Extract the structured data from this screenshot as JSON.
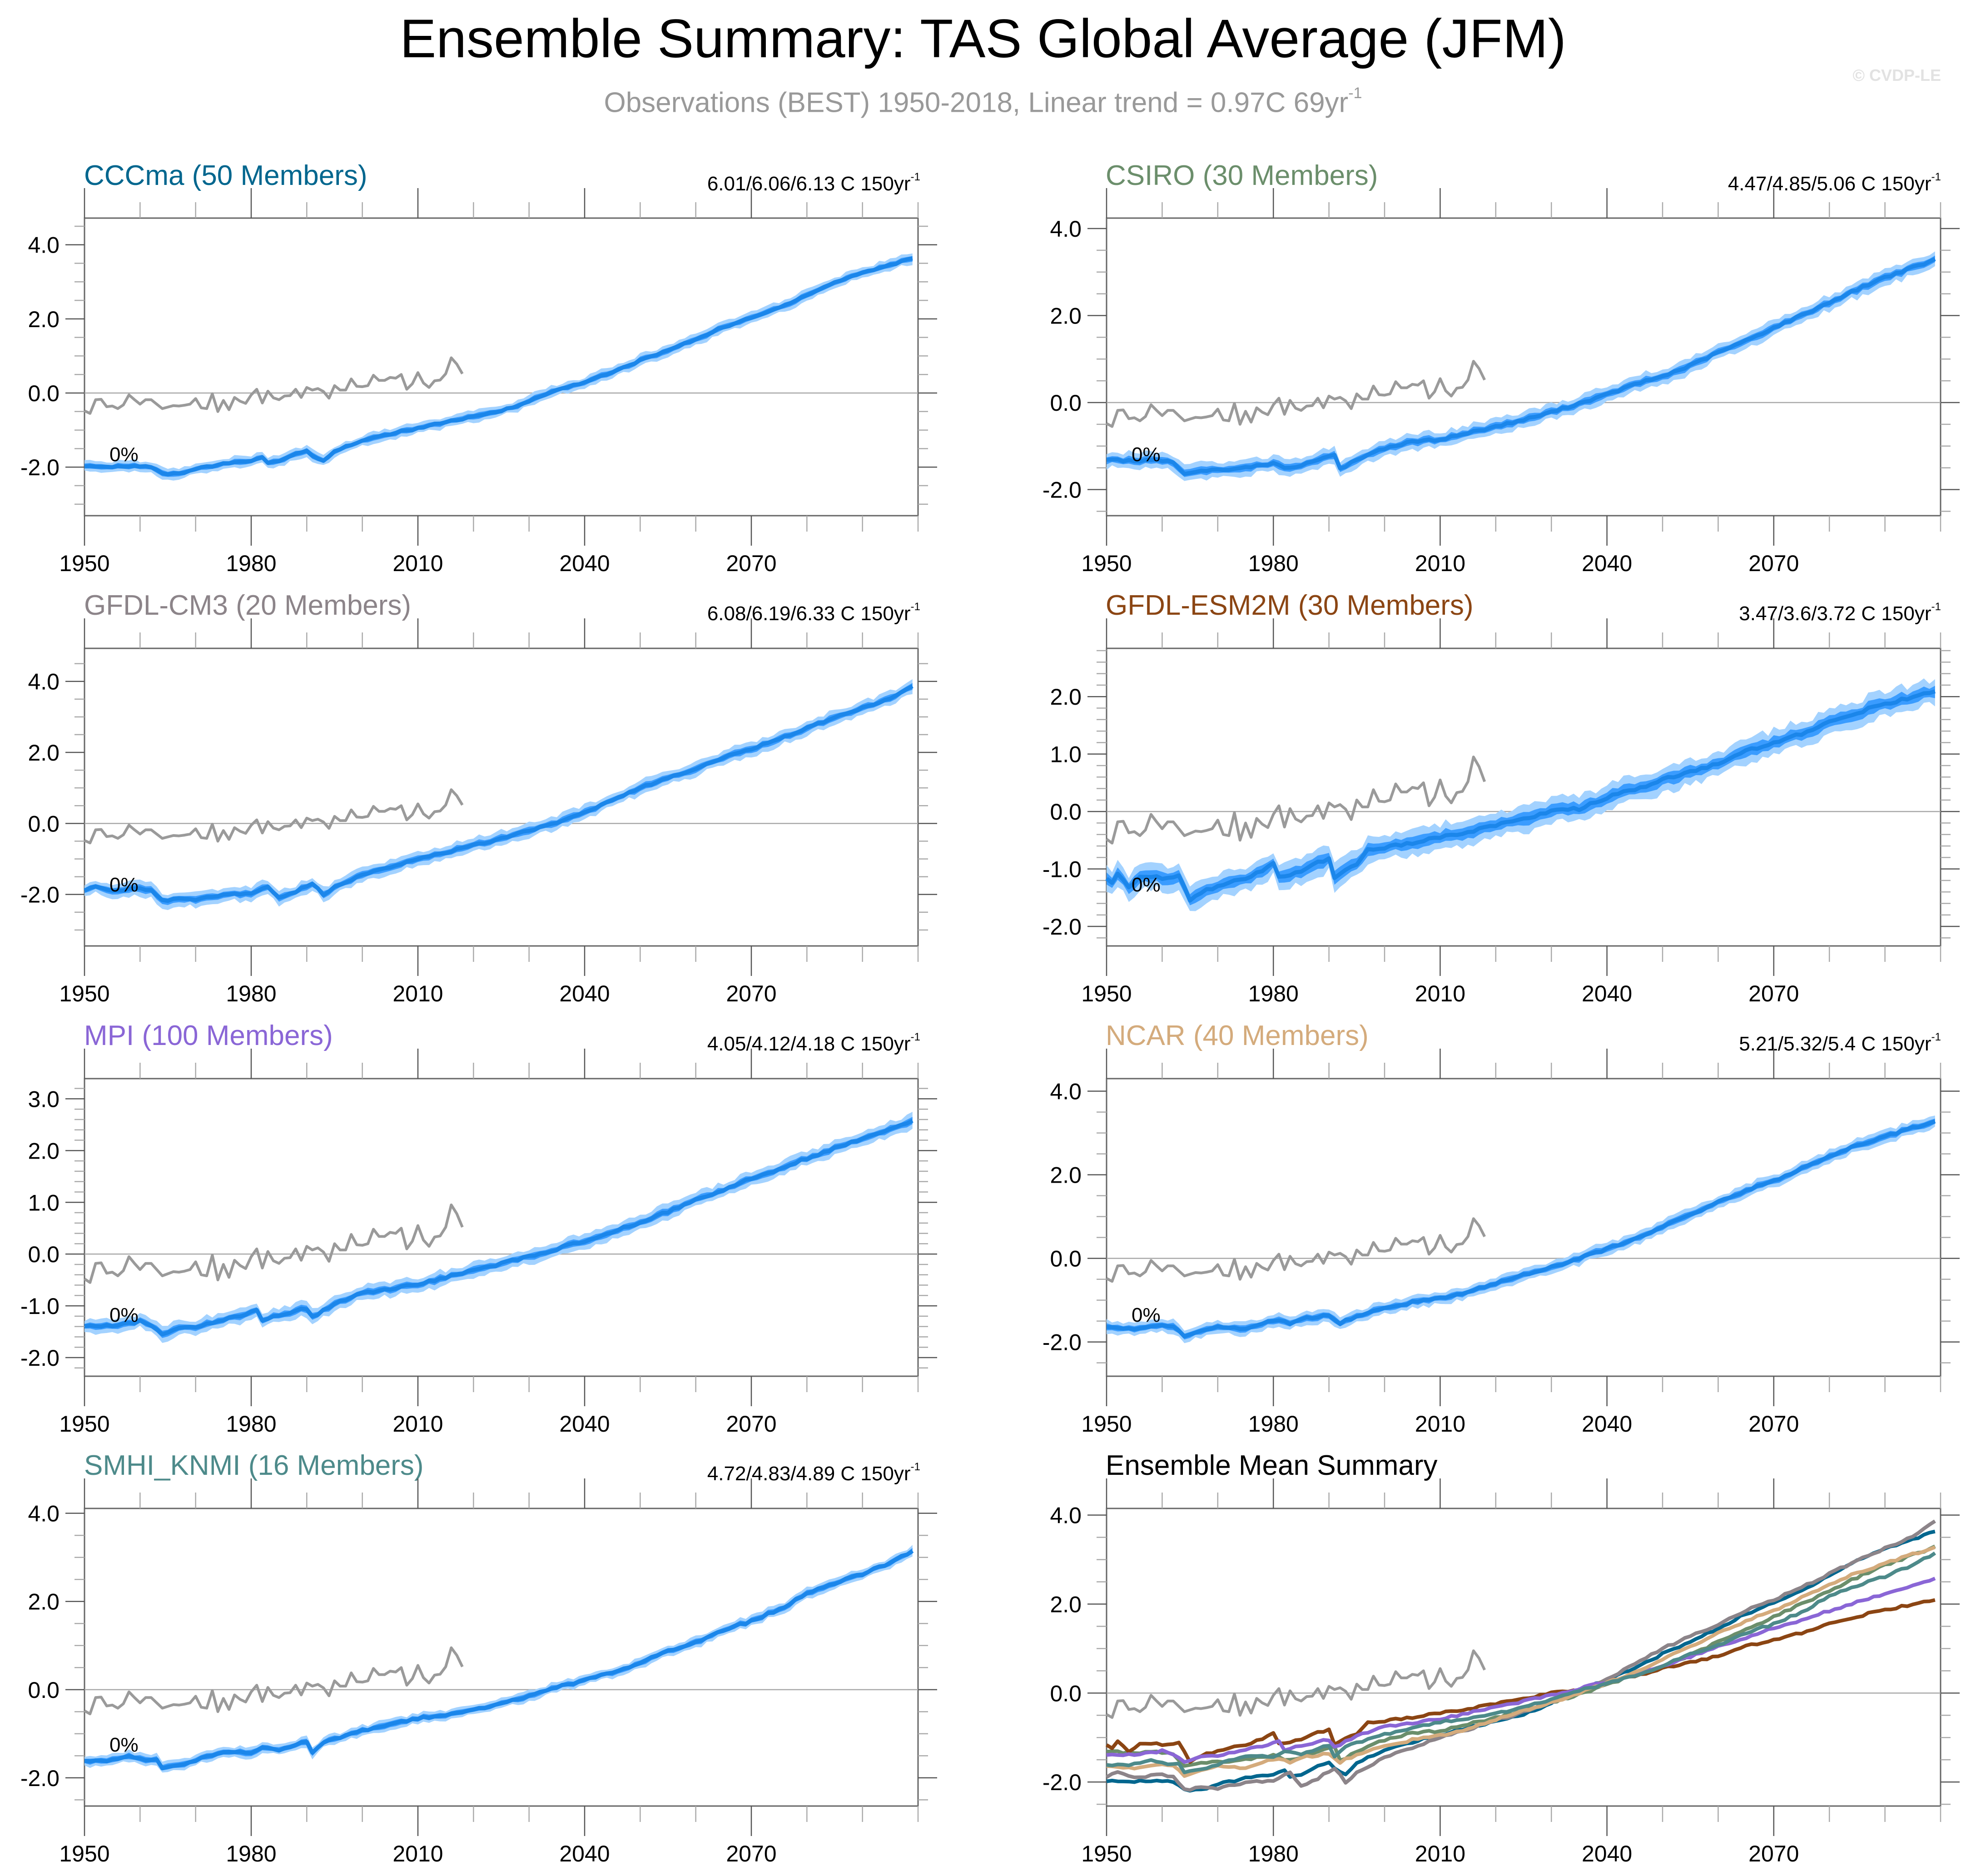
{
  "header": {
    "title": "Ensemble Summary: TAS Global Average (JFM)",
    "subtitle": "Observations (BEST) 1950-2018, Linear trend = 0.97C 69yr",
    "subtitle_sup": "-1",
    "copyright": "© CVDP-LE"
  },
  "colors": {
    "observations": "#9a9a9a",
    "envelope_outer": "#a3d2ff",
    "envelope_inner": "#3a9cff",
    "ensemble_mean": "#1b86ea",
    "zero_line": "#a8a8a8",
    "axis": "#666666"
  },
  "chart_data": [
    {
      "type": "line",
      "id": "cccma",
      "title": "CCCma (50 Members)",
      "title_color": "#00668e",
      "stats": "6.01/6.06/6.13 C 150yr",
      "stats_sup": "-1",
      "percent_label": "0%",
      "xlim": [
        1950,
        2100
      ],
      "ylim": [
        -3.31,
        4.72
      ],
      "x_ticks": [
        1950,
        1980,
        2010,
        2040,
        2070
      ],
      "x_tick_labels": [
        "1950",
        "1980",
        "2010",
        "2040",
        "2070"
      ],
      "y_ticks": [
        -2.0,
        0.0,
        2.0,
        4.0
      ],
      "y_tick_labels": [
        "-2.0",
        "0.0",
        "2.0",
        "4.0"
      ],
      "y_minor_step": 0.5,
      "envelope_inner_halfwidth": 0.07,
      "envelope_outer_halfwidth": 0.15,
      "ensemble_mean": {
        "x": [
          1950,
          1955,
          1960,
          1962,
          1964,
          1967,
          1970,
          1975,
          1980,
          1982,
          1983,
          1985,
          1988,
          1990,
          1992,
          1993,
          1995,
          2000,
          2005,
          2010,
          2015,
          2020,
          2025,
          2030,
          2035,
          2040,
          2045,
          2050,
          2055,
          2060,
          2065,
          2070,
          2075,
          2080,
          2085,
          2090,
          2095,
          2099
        ],
        "y": [
          -1.98,
          -1.98,
          -1.98,
          -2.0,
          -2.18,
          -2.18,
          -2.05,
          -1.92,
          -1.82,
          -1.74,
          -1.88,
          -1.82,
          -1.65,
          -1.58,
          -1.78,
          -1.82,
          -1.55,
          -1.3,
          -1.1,
          -0.95,
          -0.78,
          -0.65,
          -0.48,
          -0.22,
          0.08,
          0.3,
          0.55,
          0.88,
          1.15,
          1.45,
          1.78,
          2.02,
          2.3,
          2.65,
          2.98,
          3.25,
          3.45,
          3.65
        ]
      }
    },
    {
      "type": "line",
      "id": "csiro",
      "title": "CSIRO (30 Members)",
      "title_color": "#6b8e6b",
      "stats": "4.47/4.85/5.06 C 150yr",
      "stats_sup": "-1",
      "percent_label": "0%",
      "xlim": [
        1950,
        2100
      ],
      "ylim": [
        -2.6,
        4.24
      ],
      "x_ticks": [
        1950,
        1980,
        2010,
        2040,
        2070
      ],
      "x_tick_labels": [
        "1950",
        "1980",
        "2010",
        "2040",
        "2070"
      ],
      "y_ticks": [
        -2.0,
        0.0,
        2.0,
        4.0
      ],
      "y_tick_labels": [
        "-2.0",
        "0.0",
        "2.0",
        "4.0"
      ],
      "y_minor_step": 0.5,
      "envelope_inner_halfwidth": 0.08,
      "envelope_outer_halfwidth": 0.18,
      "ensemble_mean": {
        "x": [
          1950,
          1955,
          1960,
          1962,
          1964,
          1967,
          1970,
          1975,
          1980,
          1983,
          1988,
          1991,
          1992,
          1993,
          1995,
          2000,
          2005,
          2010,
          2015,
          2020,
          2025,
          2030,
          2035,
          2040,
          2045,
          2050,
          2055,
          2060,
          2065,
          2070,
          2075,
          2080,
          2085,
          2090,
          2095,
          2099
        ],
        "y": [
          -1.3,
          -1.35,
          -1.33,
          -1.38,
          -1.62,
          -1.55,
          -1.55,
          -1.5,
          -1.4,
          -1.52,
          -1.32,
          -1.18,
          -1.5,
          -1.48,
          -1.3,
          -1.05,
          -0.9,
          -0.85,
          -0.7,
          -0.55,
          -0.4,
          -0.22,
          -0.02,
          0.18,
          0.42,
          0.6,
          0.85,
          1.15,
          1.42,
          1.72,
          2.0,
          2.3,
          2.6,
          2.88,
          3.1,
          3.28
        ]
      }
    },
    {
      "type": "line",
      "id": "gfdl-cm3",
      "title": "GFDL-CM3 (20 Members)",
      "title_color": "#8c8489",
      "stats": "6.08/6.19/6.33 C 150yr",
      "stats_sup": "-1",
      "percent_label": "0%",
      "xlim": [
        1950,
        2100
      ],
      "ylim": [
        -3.45,
        4.93
      ],
      "x_ticks": [
        1950,
        1980,
        2010,
        2040,
        2070
      ],
      "x_tick_labels": [
        "1950",
        "1980",
        "2010",
        "2040",
        "2070"
      ],
      "y_ticks": [
        -2.0,
        0.0,
        2.0,
        4.0
      ],
      "y_tick_labels": [
        "-2.0",
        "0.0",
        "2.0",
        "4.0"
      ],
      "y_minor_step": 0.5,
      "envelope_inner_halfwidth": 0.09,
      "envelope_outer_halfwidth": 0.2,
      "ensemble_mean": {
        "x": [
          1950,
          1952,
          1955,
          1960,
          1962,
          1964,
          1967,
          1970,
          1975,
          1980,
          1983,
          1985,
          1988,
          1991,
          1993,
          1995,
          2000,
          2005,
          2010,
          2015,
          2020,
          2025,
          2030,
          2035,
          2040,
          2045,
          2050,
          2055,
          2060,
          2065,
          2070,
          2075,
          2080,
          2085,
          2090,
          2095,
          2099
        ],
        "y": [
          -1.88,
          -1.8,
          -1.9,
          -1.82,
          -1.88,
          -2.18,
          -2.12,
          -2.15,
          -2.0,
          -1.98,
          -1.78,
          -2.1,
          -1.92,
          -1.68,
          -2.02,
          -1.78,
          -1.45,
          -1.22,
          -1.0,
          -0.82,
          -0.62,
          -0.42,
          -0.2,
          0.02,
          0.32,
          0.65,
          1.0,
          1.28,
          1.55,
          1.85,
          2.1,
          2.38,
          2.68,
          2.98,
          3.25,
          3.52,
          3.85
        ]
      }
    },
    {
      "type": "line",
      "id": "gfdl-esm2m",
      "title": "GFDL-ESM2M (30 Members)",
      "title_color": "#8b4513",
      "stats": "3.47/3.6/3.72 C 150yr",
      "stats_sup": "-1",
      "percent_label": "0%",
      "xlim": [
        1950,
        2100
      ],
      "ylim": [
        -2.34,
        2.84
      ],
      "x_ticks": [
        1950,
        1980,
        2010,
        2040,
        2070
      ],
      "x_tick_labels": [
        "1950",
        "1980",
        "2010",
        "2040",
        "2070"
      ],
      "y_ticks": [
        -2.0,
        -1.0,
        0.0,
        1.0,
        2.0
      ],
      "y_tick_labels": [
        "-2.0",
        "-1.0",
        "0.0",
        "1.0",
        "2.0"
      ],
      "y_minor_step": 0.2,
      "envelope_inner_halfwidth": 0.1,
      "envelope_outer_halfwidth": 0.22,
      "ensemble_mean": {
        "x": [
          1950,
          1951,
          1952,
          1954,
          1956,
          1960,
          1963,
          1965,
          1967,
          1970,
          1972,
          1975,
          1978,
          1980,
          1981,
          1985,
          1988,
          1990,
          1991,
          1993,
          1995,
          1997,
          2000,
          2005,
          2010,
          2015,
          2020,
          2025,
          2030,
          2035,
          2040,
          2045,
          2050,
          2055,
          2060,
          2065,
          2070,
          2075,
          2080,
          2085,
          2090,
          2095,
          2099
        ],
        "y": [
          -1.18,
          -1.25,
          -1.08,
          -1.3,
          -1.15,
          -1.15,
          -1.12,
          -1.55,
          -1.4,
          -1.3,
          -1.22,
          -1.15,
          -1.05,
          -0.88,
          -1.15,
          -1.05,
          -0.88,
          -0.82,
          -1.18,
          -1.02,
          -0.9,
          -0.65,
          -0.62,
          -0.55,
          -0.45,
          -0.35,
          -0.25,
          -0.12,
          0.0,
          0.05,
          0.25,
          0.38,
          0.55,
          0.7,
          0.82,
          1.05,
          1.18,
          1.35,
          1.55,
          1.72,
          1.88,
          1.98,
          2.1
        ]
      }
    },
    {
      "type": "line",
      "id": "mpi",
      "title": "MPI (100 Members)",
      "title_color": "#8a66d6",
      "stats": "4.05/4.12/4.18 C 150yr",
      "stats_sup": "-1",
      "percent_label": "0%",
      "xlim": [
        1950,
        2100
      ],
      "ylim": [
        -2.36,
        3.39
      ],
      "x_ticks": [
        1950,
        1980,
        2010,
        2040,
        2070
      ],
      "x_tick_labels": [
        "1950",
        "1980",
        "2010",
        "2040",
        "2070"
      ],
      "y_ticks": [
        -2.0,
        -1.0,
        0.0,
        1.0,
        2.0,
        3.0
      ],
      "y_tick_labels": [
        "-2.0",
        "-1.0",
        "0.0",
        "1.0",
        "2.0",
        "3.0"
      ],
      "y_minor_step": 0.2,
      "envelope_inner_halfwidth": 0.06,
      "envelope_outer_halfwidth": 0.14,
      "ensemble_mean": {
        "x": [
          1950,
          1955,
          1960,
          1962,
          1964,
          1967,
          1970,
          1975,
          1980,
          1981,
          1982,
          1985,
          1988,
          1990,
          1991,
          1995,
          2000,
          2005,
          2010,
          2015,
          2020,
          2025,
          2030,
          2035,
          2040,
          2045,
          2050,
          2055,
          2060,
          2065,
          2070,
          2075,
          2080,
          2085,
          2090,
          2095,
          2099
        ],
        "y": [
          -1.37,
          -1.4,
          -1.3,
          -1.36,
          -1.57,
          -1.45,
          -1.4,
          -1.28,
          -1.12,
          -1.1,
          -1.3,
          -1.18,
          -1.1,
          -1.05,
          -1.22,
          -0.95,
          -0.75,
          -0.68,
          -0.58,
          -0.45,
          -0.32,
          -0.18,
          -0.05,
          0.1,
          0.25,
          0.42,
          0.62,
          0.82,
          1.05,
          1.25,
          1.45,
          1.65,
          1.85,
          2.05,
          2.22,
          2.42,
          2.58
        ]
      }
    },
    {
      "type": "line",
      "id": "ncar",
      "title": "NCAR (40 Members)",
      "title_color": "#d4ab7c",
      "stats": "5.21/5.32/5.4 C 150yr",
      "stats_sup": "-1",
      "percent_label": "0%",
      "xlim": [
        1950,
        2100
      ],
      "ylim": [
        -2.82,
        4.3
      ],
      "x_ticks": [
        1950,
        1980,
        2010,
        2040,
        2070
      ],
      "x_tick_labels": [
        "1950",
        "1980",
        "2010",
        "2040",
        "2070"
      ],
      "y_ticks": [
        -2.0,
        0.0,
        2.0,
        4.0
      ],
      "y_tick_labels": [
        "-2.0",
        "0.0",
        "2.0",
        "4.0"
      ],
      "y_minor_step": 0.5,
      "envelope_inner_halfwidth": 0.07,
      "envelope_outer_halfwidth": 0.15,
      "ensemble_mean": {
        "x": [
          1950,
          1955,
          1960,
          1962,
          1964,
          1967,
          1970,
          1975,
          1980,
          1983,
          1985,
          1990,
          1992,
          1995,
          2000,
          2005,
          2010,
          2015,
          2020,
          2025,
          2030,
          2035,
          2040,
          2045,
          2050,
          2055,
          2060,
          2065,
          2070,
          2075,
          2080,
          2085,
          2090,
          2095,
          2099
        ],
        "y": [
          -1.62,
          -1.68,
          -1.62,
          -1.65,
          -1.85,
          -1.72,
          -1.65,
          -1.68,
          -1.48,
          -1.55,
          -1.45,
          -1.35,
          -1.55,
          -1.38,
          -1.2,
          -1.05,
          -0.95,
          -0.8,
          -0.6,
          -0.4,
          -0.22,
          0.0,
          0.22,
          0.48,
          0.75,
          1.05,
          1.35,
          1.62,
          1.85,
          2.15,
          2.45,
          2.7,
          2.92,
          3.12,
          3.28
        ]
      }
    },
    {
      "type": "line",
      "id": "smhi-knmi",
      "title": "SMHI_KNMI (16 Members)",
      "title_color": "#4d8a8a",
      "stats": "4.72/4.83/4.89 C 150yr",
      "stats_sup": "-1",
      "percent_label": "0%",
      "xlim": [
        1950,
        2100
      ],
      "ylim": [
        -2.64,
        4.11
      ],
      "x_ticks": [
        1950,
        1980,
        2010,
        2040,
        2070
      ],
      "x_tick_labels": [
        "1950",
        "1980",
        "2010",
        "2040",
        "2070"
      ],
      "y_ticks": [
        -2.0,
        0.0,
        2.0,
        4.0
      ],
      "y_tick_labels": [
        "-2.0",
        "0.0",
        "2.0",
        "4.0"
      ],
      "y_minor_step": 0.5,
      "envelope_inner_halfwidth": 0.06,
      "envelope_outer_halfwidth": 0.12,
      "ensemble_mean": {
        "x": [
          1950,
          1955,
          1958,
          1960,
          1963,
          1964,
          1967,
          1970,
          1975,
          1980,
          1982,
          1985,
          1990,
          1991,
          1993,
          1995,
          2000,
          2005,
          2010,
          2015,
          2020,
          2025,
          2030,
          2035,
          2040,
          2045,
          2050,
          2055,
          2060,
          2065,
          2070,
          2075,
          2080,
          2085,
          2090,
          2095,
          2099
        ],
        "y": [
          -1.62,
          -1.6,
          -1.52,
          -1.58,
          -1.58,
          -1.78,
          -1.72,
          -1.6,
          -1.4,
          -1.42,
          -1.32,
          -1.38,
          -1.18,
          -1.45,
          -1.22,
          -1.12,
          -0.92,
          -0.8,
          -0.65,
          -0.58,
          -0.45,
          -0.32,
          -0.15,
          0.05,
          0.22,
          0.38,
          0.62,
          0.88,
          1.08,
          1.35,
          1.55,
          1.82,
          2.18,
          2.42,
          2.62,
          2.88,
          3.15
        ]
      }
    },
    {
      "type": "line",
      "id": "ensemble-mean-summary",
      "title": "Ensemble Mean Summary",
      "title_color": "#000000",
      "xlim": [
        1950,
        2100
      ],
      "ylim": [
        -2.54,
        4.15
      ],
      "x_ticks": [
        1950,
        1980,
        2010,
        2040,
        2070
      ],
      "x_tick_labels": [
        "1950",
        "1980",
        "2010",
        "2040",
        "2070"
      ],
      "y_ticks": [
        -2.0,
        0.0,
        2.0,
        4.0
      ],
      "y_tick_labels": [
        "-2.0",
        "0.0",
        "2.0",
        "4.0"
      ],
      "y_minor_step": 0.5,
      "series_from_panels": [
        "cccma",
        "csiro",
        "gfdl-cm3",
        "gfdl-esm2m",
        "mpi",
        "ncar",
        "smhi-knmi"
      ]
    }
  ],
  "observations": {
    "name": "Observations (BEST)",
    "x_start": 1950,
    "values": [
      -0.48,
      -0.55,
      -0.18,
      -0.17,
      -0.37,
      -0.35,
      -0.42,
      -0.32,
      -0.05,
      -0.18,
      -0.3,
      -0.18,
      -0.18,
      -0.3,
      -0.42,
      -0.38,
      -0.34,
      -0.35,
      -0.33,
      -0.3,
      -0.15,
      -0.4,
      -0.42,
      -0.02,
      -0.5,
      -0.2,
      -0.45,
      -0.12,
      -0.22,
      -0.28,
      -0.05,
      0.1,
      -0.27,
      0.05,
      -0.13,
      -0.18,
      -0.08,
      -0.07,
      0.1,
      -0.12,
      0.15,
      0.08,
      0.12,
      0.04,
      -0.14,
      0.2,
      0.08,
      0.08,
      0.38,
      0.18,
      0.17,
      0.2,
      0.48,
      0.34,
      0.34,
      0.42,
      0.4,
      0.5,
      0.1,
      0.25,
      0.55,
      0.27,
      0.15,
      0.33,
      0.35,
      0.52,
      0.95,
      0.78,
      0.52
    ]
  }
}
